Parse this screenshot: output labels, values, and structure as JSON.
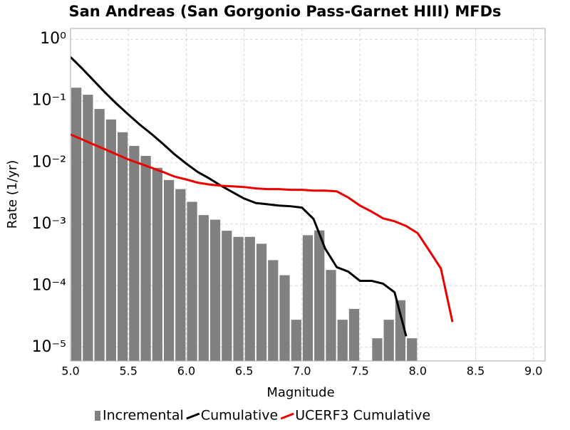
{
  "chart_data": {
    "type": "combo",
    "title": "San Andreas (San Gorgonio Pass-Garnet HIII) MFDs",
    "x_label": "Magnitude",
    "y_label": "Rate (1/yr)",
    "y_scale": "log",
    "grid": true,
    "legend": "bottom",
    "xlim": [
      5.0,
      9.1
    ],
    "ylim": [
      6e-06,
      1.5
    ],
    "xticks": [
      {
        "value": 5,
        "label": "5.0"
      },
      5.5,
      {
        "value": 6,
        "label": "6.0"
      },
      6.5,
      {
        "value": 7,
        "label": "7.0"
      },
      7.5,
      {
        "value": 8,
        "label": "8.0"
      },
      8.5,
      {
        "value": 9,
        "label": "9.0"
      }
    ],
    "yticks": [
      {
        "value": 1,
        "label": "10⁰"
      },
      {
        "value": 0.1,
        "label": "10⁻¹"
      },
      {
        "value": 0.01,
        "label": "10⁻²"
      },
      {
        "value": 0.001,
        "label": "10⁻³"
      },
      {
        "value": 0.0001,
        "label": "10⁻⁴"
      },
      {
        "value": 1e-05,
        "label": "10⁻⁵"
      }
    ],
    "series": [
      {
        "name": "Incremental",
        "type": "bar",
        "color": "#808080",
        "bins": [
          5.0,
          5.1,
          5.2,
          5.3,
          5.4,
          5.5,
          5.6,
          5.7,
          5.8,
          5.9,
          6.0,
          6.1,
          6.2,
          6.3,
          6.4,
          6.5,
          6.6,
          6.7,
          6.8,
          6.9,
          7.0,
          7.1,
          7.2,
          7.3,
          7.4,
          7.5,
          7.6,
          7.7,
          7.8,
          7.9,
          8.0
        ],
        "values": [
          0.164,
          0.126,
          0.074,
          0.05,
          0.031,
          0.0186,
          0.0128,
          0.0082,
          0.0052,
          0.0037,
          0.0023,
          0.0014,
          0.00118,
          0.00078,
          0.00062,
          0.00062,
          0.00048,
          0.00026,
          0.000148,
          2.8e-05,
          0.00066,
          0.00079,
          0.00018,
          2.8e-05,
          4.2e-05,
          null,
          1.4e-05,
          2.8e-05,
          5.8e-05,
          1.4e-05
        ]
      },
      {
        "name": "Cumulative",
        "type": "line",
        "color": "#000000",
        "x": [
          5.0,
          5.1,
          5.2,
          5.3,
          5.4,
          5.5,
          5.6,
          5.7,
          5.8,
          5.9,
          6.0,
          6.1,
          6.2,
          6.3,
          6.4,
          6.5,
          6.6,
          6.7,
          6.8,
          6.9,
          7.0,
          7.1,
          7.2,
          7.3,
          7.4,
          7.5,
          7.6,
          7.7,
          7.8,
          7.9
        ],
        "values": [
          0.515,
          0.336,
          0.214,
          0.136,
          0.089,
          0.06,
          0.041,
          0.029,
          0.02,
          0.0135,
          0.0096,
          0.007,
          0.0055,
          0.0042,
          0.0033,
          0.0026,
          0.0022,
          0.0021,
          0.002,
          0.00195,
          0.00185,
          0.00121,
          0.0004,
          0.0002,
          0.000169,
          0.00012,
          0.00012,
          0.000108,
          7.8e-05,
          1.51e-05
        ]
      },
      {
        "name": "UCERF3 Cumulative",
        "type": "line",
        "color": "#ee0000",
        "x": [
          5.0,
          5.1,
          5.2,
          5.3,
          5.4,
          5.5,
          5.6,
          5.7,
          5.8,
          5.9,
          6.0,
          6.1,
          6.2,
          6.3,
          6.4,
          6.5,
          6.6,
          6.7,
          6.8,
          6.9,
          7.0,
          7.1,
          7.2,
          7.3,
          7.4,
          7.5,
          7.6,
          7.7,
          7.8,
          7.9,
          8.0,
          8.1,
          8.2,
          8.3
        ],
        "values": [
          0.0285,
          0.0237,
          0.0196,
          0.0163,
          0.0135,
          0.0112,
          0.0096,
          0.0082,
          0.007,
          0.0059,
          0.0053,
          0.0047,
          0.0044,
          0.0042,
          0.0041,
          0.004,
          0.0038,
          0.0037,
          0.0037,
          0.0036,
          0.0036,
          0.0035,
          0.0035,
          0.0034,
          0.0027,
          0.002,
          0.0016,
          0.00124,
          0.00111,
          0.00093,
          0.00071,
          0.00037,
          0.00019,
          2.57e-05
        ]
      }
    ]
  }
}
